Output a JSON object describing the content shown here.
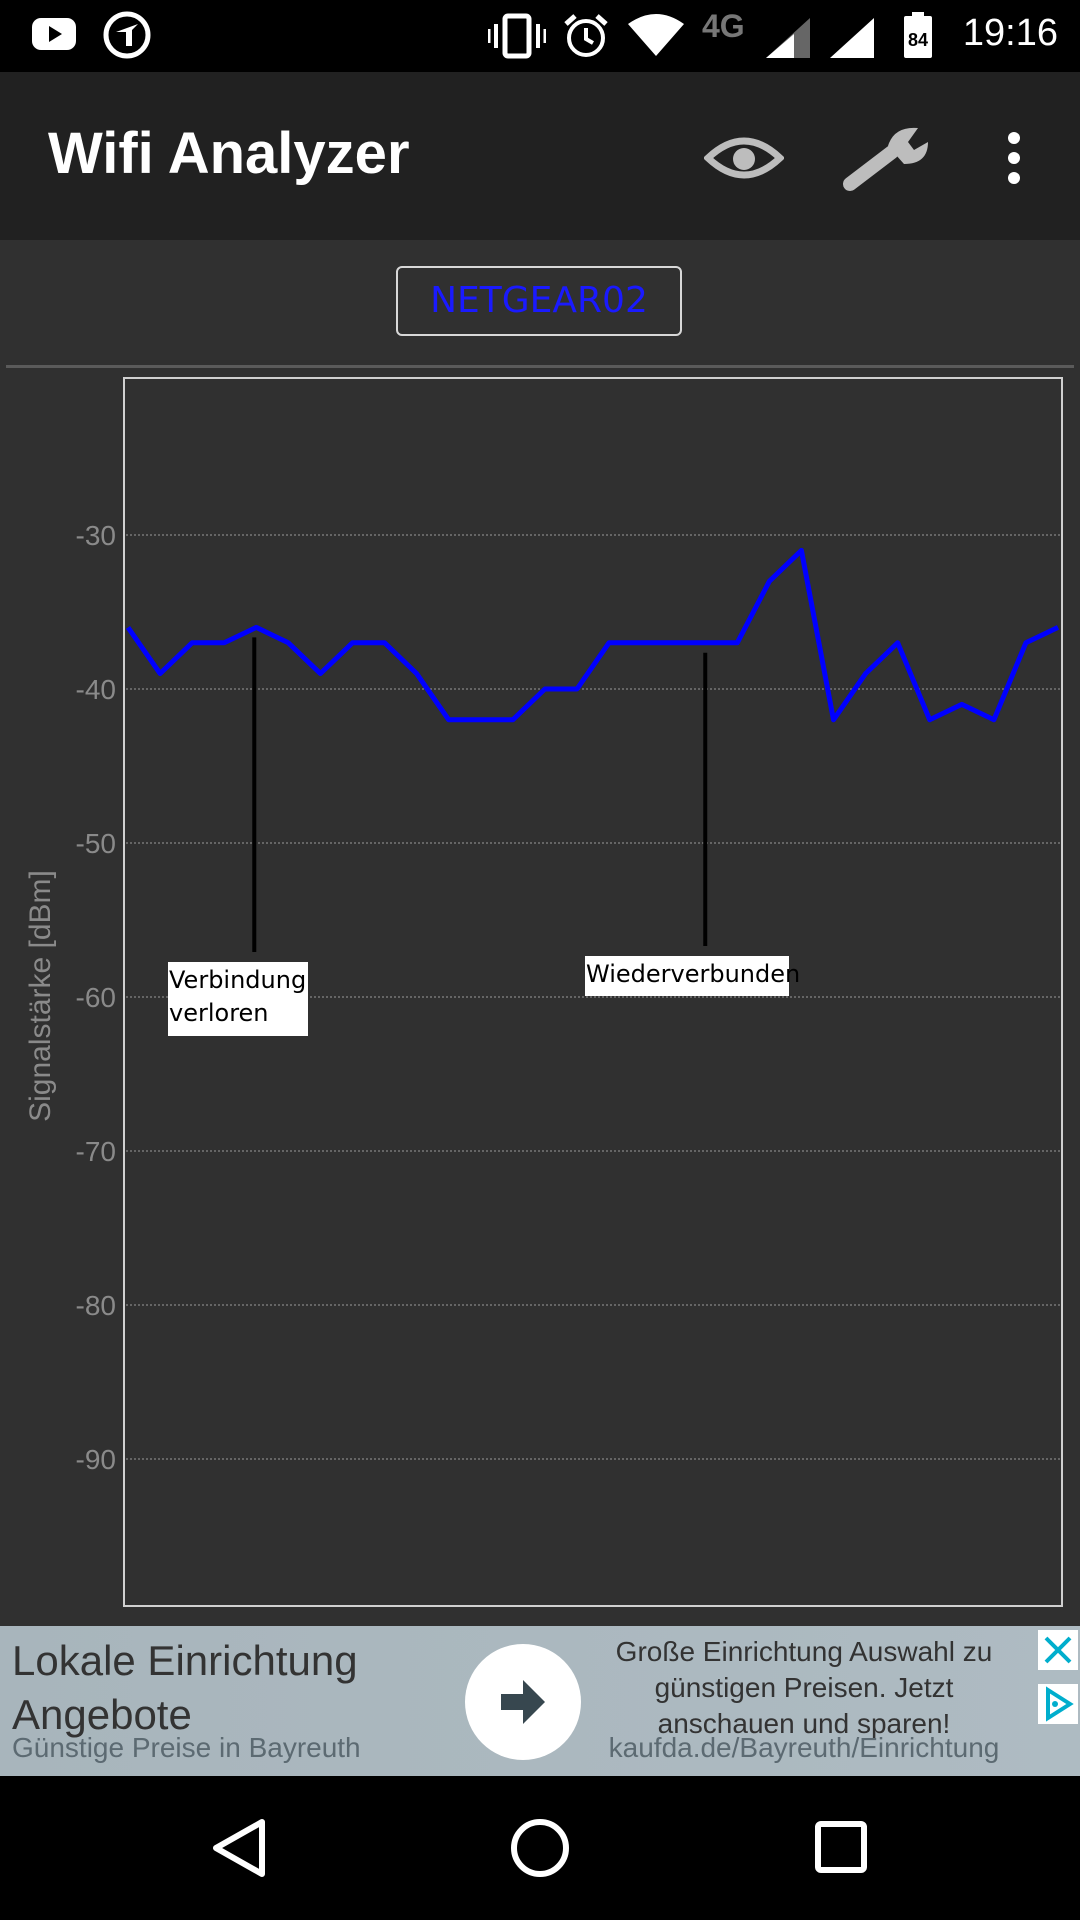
{
  "status_bar": {
    "time": "19:16",
    "network_type": "4G",
    "battery_level": "84",
    "icons": [
      "youtube-icon",
      "tagesschau-icon",
      "vibrate-icon",
      "alarm-icon",
      "wifi-icon",
      "signal-icon",
      "signal-icon",
      "battery-icon"
    ]
  },
  "app_bar": {
    "title": "Wifi Analyzer",
    "actions": [
      "eye-icon",
      "wrench-icon",
      "overflow-menu-icon"
    ]
  },
  "network_selector": {
    "label": "NETGEAR02"
  },
  "chart_data": {
    "type": "line",
    "ylabel": "Signalstärke [dBm]",
    "xlabel": "",
    "yticks": [
      "-30",
      "-40",
      "-50",
      "-60",
      "-70",
      "-80",
      "-90"
    ],
    "ylim": [
      -100,
      -20
    ],
    "grid": true,
    "series": [
      {
        "color": "#0000ff",
        "values": [
          -36,
          -39,
          -37,
          -37,
          -36,
          -37,
          -39,
          -37,
          -37,
          -39,
          -42,
          -42,
          -42,
          -40,
          -40,
          -37,
          -37,
          -37,
          -37,
          -37,
          -33,
          -31,
          -42,
          -39,
          -37,
          -42,
          -41,
          -42,
          -37,
          -36
        ]
      }
    ],
    "annotations": [
      {
        "text": [
          "Verbindung",
          "verloren"
        ],
        "index": 4
      },
      {
        "text": [
          "Wiederverbunden"
        ],
        "index": 18
      }
    ]
  },
  "ad": {
    "title": "Lokale Einrichtung Angebote",
    "subtitle": "Günstige Preise in Bayreuth",
    "body": "Große Einrichtung Auswahl zu günstigen Preisen. Jetzt anschauen und sparen!",
    "url": "kaufda.de/Bayreuth/Einrichtung"
  },
  "nav_bar": {
    "items": [
      "back-icon",
      "home-icon",
      "recents-icon"
    ]
  }
}
